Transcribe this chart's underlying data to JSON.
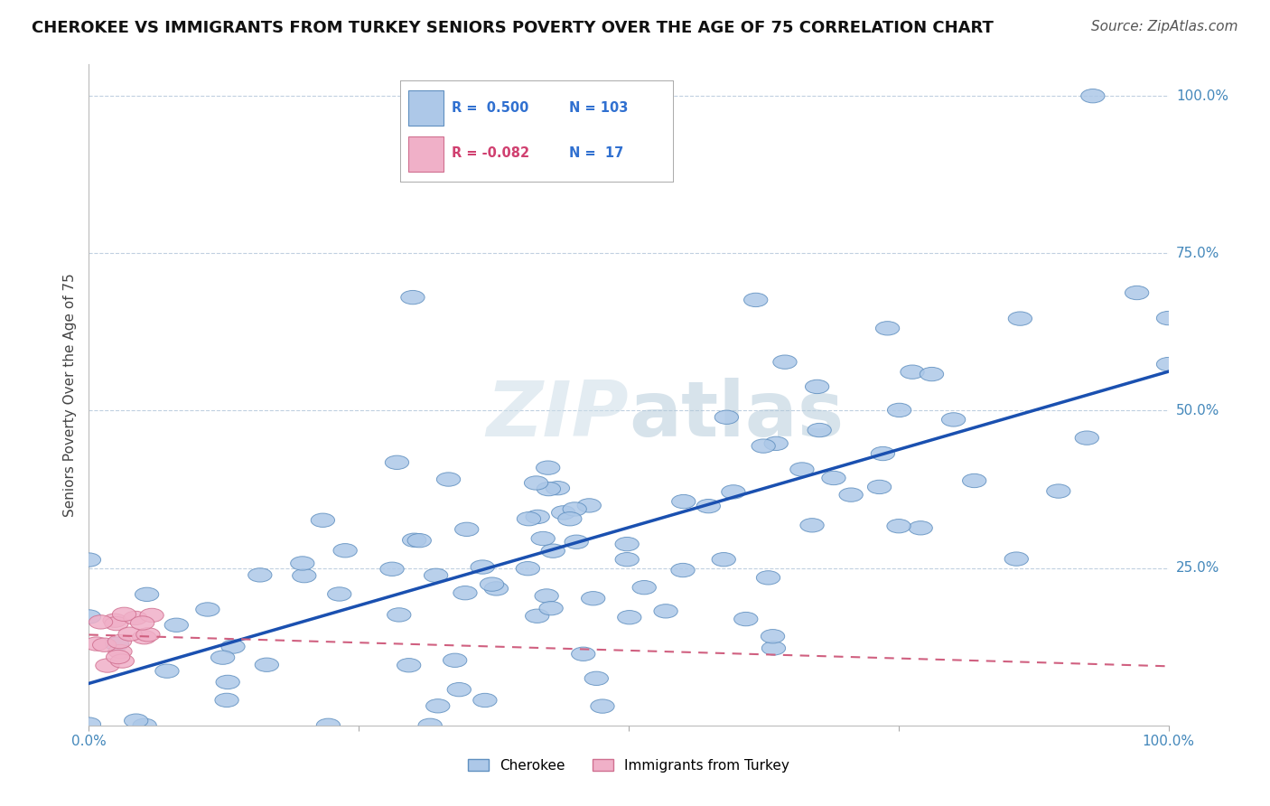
{
  "title": "CHEROKEE VS IMMIGRANTS FROM TURKEY SENIORS POVERTY OVER THE AGE OF 75 CORRELATION CHART",
  "source": "Source: ZipAtlas.com",
  "ylabel": "Seniors Poverty Over the Age of 75",
  "cherokee_color": "#adc8e8",
  "cherokee_edge": "#6090c0",
  "turkey_color": "#f0b0c8",
  "turkey_edge": "#d07090",
  "regression_cherokee_color": "#1a50b0",
  "regression_turkey_color": "#d06080",
  "watermark_zip": "ZIP",
  "watermark_atlas": "atlas",
  "background_color": "#ffffff",
  "grid_color": "#c0d0e0",
  "title_fontsize": 13,
  "axis_label_fontsize": 11,
  "tick_fontsize": 11,
  "source_fontsize": 11,
  "r_color_blue": "#3070d0",
  "r_color_pink": "#d04070",
  "n_color": "#3070d0",
  "cherokee_label": "Cherokee",
  "turkey_label": "Immigrants from Turkey",
  "legend_r_c": "R =  0.500",
  "legend_n_c": "N = 103",
  "legend_r_t": "R = -0.082",
  "legend_n_t": "N =  17"
}
